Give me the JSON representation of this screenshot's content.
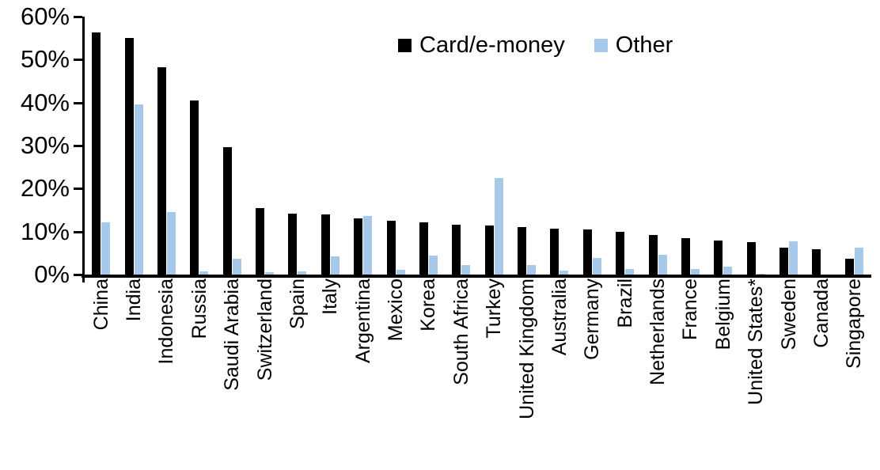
{
  "chart_data": {
    "type": "bar",
    "title": "",
    "xlabel": "",
    "ylabel": "",
    "ylim": [
      0,
      60
    ],
    "yticks": [
      0,
      10,
      20,
      30,
      40,
      50,
      60
    ],
    "ytick_suffix": "%",
    "grid": false,
    "legend_position": "top-center",
    "categories": [
      "China",
      "India",
      "Indonesia",
      "Russia",
      "Saudi Arabia",
      "Switzerland",
      "Spain",
      "Italy",
      "Argentina",
      "Mexico",
      "Korea",
      "South Africa",
      "Turkey",
      "United Kingdom",
      "Australia",
      "Germany",
      "Brazil",
      "Netherlands",
      "France",
      "Belgium",
      "United States*",
      "Sweden",
      "Canada",
      "Singapore"
    ],
    "series": [
      {
        "name": "Card/e-money",
        "color": "#000000",
        "values": [
          56.4,
          55.1,
          48.3,
          40.5,
          29.7,
          15.5,
          14.1,
          14.0,
          13.1,
          12.6,
          12.1,
          11.6,
          11.5,
          11.0,
          10.7,
          10.5,
          9.9,
          9.2,
          8.5,
          7.9,
          7.6,
          6.3,
          5.8,
          3.7
        ]
      },
      {
        "name": "Other",
        "color": "#A6C9E9",
        "values": [
          12.2,
          39.6,
          14.6,
          0.8,
          3.6,
          0.6,
          0.8,
          4.3,
          13.6,
          1.1,
          4.4,
          2.2,
          22.5,
          2.2,
          1.0,
          3.9,
          1.2,
          4.6,
          1.2,
          1.8,
          0.2,
          7.8,
          0.0,
          6.3
        ]
      }
    ],
    "axis_color": "#000000"
  }
}
